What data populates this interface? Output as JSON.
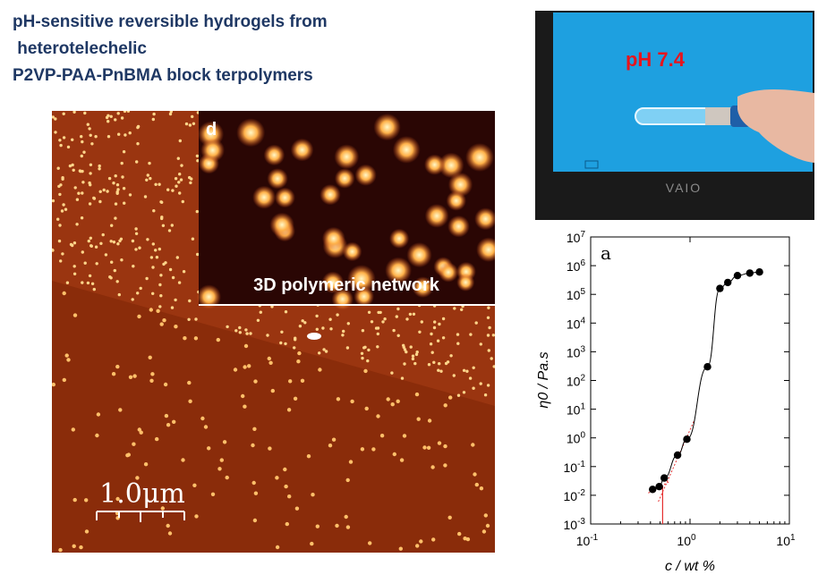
{
  "title": {
    "line1": "pH-sensitive reversible hydrogels from",
    "line2": " heterotelechelic",
    "line3": "P2VP-PAA-PnBMA block terpolymers"
  },
  "afm": {
    "inset_panel_letter": "d",
    "inset_caption": "3D polymeric network",
    "scale_bar_label": "1.0μm"
  },
  "photo": {
    "ph_label": "pH 7.4",
    "brand": "VAIO"
  },
  "colors": {
    "title": "#1f3864",
    "ph_label": "#e8141c",
    "afm_base": "#9a3510",
    "photo_screen": "#1ea0e0",
    "marker": "#000000",
    "fit_line": "#e53030"
  },
  "chart_data": {
    "type": "scatter",
    "panel_label": "a",
    "xlabel": "c / wt %",
    "ylabel": "η0 / Pa.s",
    "xscale": "log",
    "yscale": "log",
    "xlim": [
      0.1,
      10
    ],
    "ylim": [
      0.001,
      10000000
    ],
    "x_ticks": [
      "10-1",
      "100",
      "101"
    ],
    "y_ticks": [
      "10-3",
      "10-2",
      "10-1",
      "100",
      "101",
      "102",
      "103",
      "104",
      "105",
      "106",
      "107"
    ],
    "grid": false,
    "series": [
      {
        "x": [
          0.42,
          0.49,
          0.55,
          0.75,
          0.93,
          1.5,
          2.0,
          2.4,
          3.0,
          4.0,
          5.0
        ],
        "y": [
          0.016,
          0.02,
          0.04,
          0.25,
          0.9,
          300,
          160000,
          260000,
          450000,
          550000,
          600000
        ]
      }
    ]
  }
}
